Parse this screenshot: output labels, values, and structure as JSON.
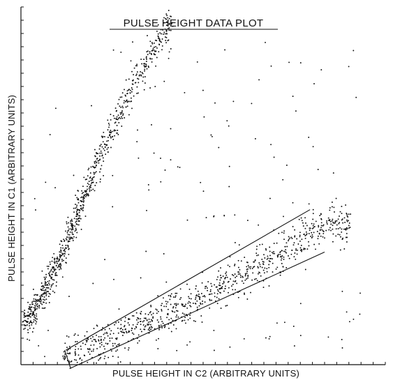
{
  "chart_data": {
    "type": "scatter",
    "title": "PULSE HEIGHT DATA PLOT",
    "xlabel": "PULSE HEIGHT IN C2 (ARBITRARY UNITS)",
    "ylabel": "PULSE HEIGHT IN C1 (ARBITRARY UNITS)",
    "xlim": [
      0,
      30
    ],
    "ylim": [
      0,
      27
    ],
    "x_ticks": 30,
    "y_ticks": 27,
    "grid": false,
    "legend": "none",
    "colors": {
      "ink": "#111111",
      "background": "#ffffff"
    },
    "series": [
      {
        "values_sample": [
          [
            0.3,
            3.0
          ],
          [
            0.5,
            3.2
          ],
          [
            0.8,
            3.6
          ],
          [
            1.0,
            4.0
          ],
          [
            1.3,
            4.5
          ],
          [
            1.6,
            5.0
          ],
          [
            1.9,
            5.6
          ],
          [
            2.2,
            6.0
          ],
          [
            2.5,
            6.6
          ],
          [
            2.8,
            7.2
          ],
          [
            3.1,
            7.8
          ],
          [
            3.4,
            8.4
          ],
          [
            3.7,
            9.0
          ],
          [
            4.0,
            9.8
          ],
          [
            4.3,
            10.5
          ],
          [
            4.6,
            11.2
          ],
          [
            4.9,
            12.0
          ],
          [
            5.2,
            12.8
          ],
          [
            5.6,
            13.6
          ],
          [
            6.0,
            14.5
          ],
          [
            6.4,
            15.4
          ],
          [
            6.8,
            16.3
          ],
          [
            7.3,
            17.3
          ],
          [
            7.8,
            18.3
          ],
          [
            8.4,
            19.4
          ],
          [
            9.0,
            20.5
          ],
          [
            9.6,
            21.6
          ],
          [
            10.2,
            22.7
          ],
          [
            10.8,
            23.7
          ],
          [
            11.4,
            24.5
          ],
          [
            12.0,
            25.0
          ],
          [
            12.3,
            26.3
          ]
        ]
      },
      {
        "values_sample": [
          [
            3.5,
            0.5
          ],
          [
            4.5,
            0.8
          ],
          [
            5.5,
            1.2
          ],
          [
            6.5,
            1.6
          ],
          [
            7.5,
            2.0
          ],
          [
            8.5,
            2.4
          ],
          [
            9.5,
            2.8
          ],
          [
            10.5,
            3.2
          ],
          [
            11.5,
            3.6
          ],
          [
            12.5,
            4.0
          ],
          [
            13.5,
            4.4
          ],
          [
            14.5,
            4.8
          ],
          [
            15.5,
            5.3
          ],
          [
            16.5,
            5.8
          ],
          [
            17.5,
            6.3
          ],
          [
            18.5,
            6.8
          ],
          [
            19.5,
            7.4
          ],
          [
            20.5,
            8.0
          ],
          [
            21.5,
            8.6
          ],
          [
            22.5,
            9.2
          ],
          [
            23.5,
            9.8
          ],
          [
            24.5,
            10.4
          ],
          [
            25.5,
            10.8
          ],
          [
            26.5,
            10.7
          ],
          [
            27.0,
            10.5
          ]
        ]
      }
    ],
    "window_lines": [
      {
        "from": [
          3.7,
          1.1
        ],
        "to": [
          23.8,
          11.7
        ]
      },
      {
        "from": [
          4.0,
          -0.3
        ],
        "to": [
          25.0,
          8.5
        ]
      },
      {
        "from": [
          3.6,
          1.1
        ],
        "to": [
          4.1,
          -0.3
        ]
      }
    ]
  }
}
